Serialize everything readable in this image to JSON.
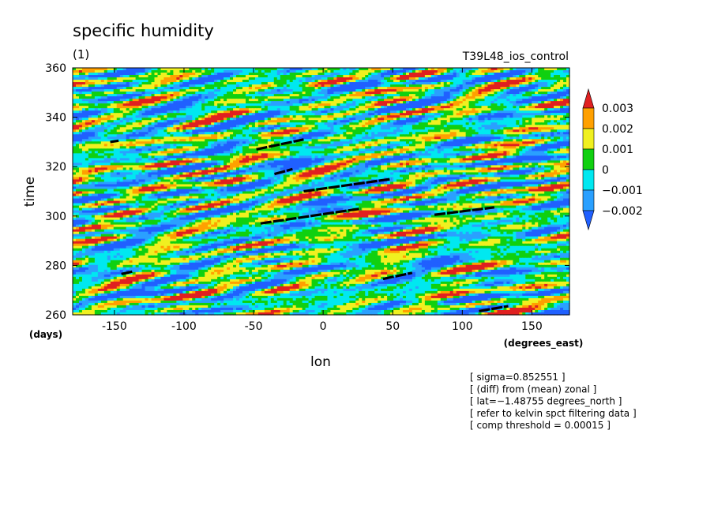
{
  "chart_data": {
    "type": "heatmap",
    "title": "specific humidity",
    "subtitle": "(1)",
    "run_label": "T39L48_ios_control",
    "xlabel": "lon",
    "ylabel": "time",
    "x_unit": "(degrees_east)",
    "y_unit": "(days)",
    "xlim": [
      -180,
      177
    ],
    "ylim": [
      260,
      360
    ],
    "x_ticks": [
      "-150",
      "-100",
      "-50",
      "0",
      "50",
      "100",
      "150"
    ],
    "x_tick_values": [
      -150,
      -100,
      -50,
      0,
      50,
      100,
      150
    ],
    "y_ticks": [
      "260",
      "280",
      "300",
      "320",
      "340",
      "360"
    ],
    "y_tick_values": [
      260,
      280,
      300,
      320,
      340,
      360
    ],
    "colorbar": {
      "labels": [
        "0.003",
        "0.002",
        "0.001",
        "0",
        "−0.001",
        "−0.002"
      ],
      "levels": [
        -0.002,
        -0.001,
        0,
        0.001,
        0.002,
        0.003
      ],
      "colors": [
        "#2060ff",
        "#2aa0ff",
        "#00e8f0",
        "#10d010",
        "#f0f020",
        "#ffa000",
        "#e02020"
      ],
      "extend": "both"
    },
    "kelvin_tracks": [
      {
        "lon": [
          -153,
          -147
        ],
        "time": [
          330,
          330.5
        ]
      },
      {
        "lon": [
          -48,
          -14
        ],
        "time": [
          327,
          331
        ]
      },
      {
        "lon": [
          -35,
          -22
        ],
        "time": [
          317,
          319
        ]
      },
      {
        "lon": [
          -14,
          49
        ],
        "time": [
          310,
          315
        ]
      },
      {
        "lon": [
          -45,
          27
        ],
        "time": [
          297,
          303
        ]
      },
      {
        "lon": [
          80,
          123
        ],
        "time": [
          300.5,
          303.5
        ]
      },
      {
        "lon": [
          -145,
          -137
        ],
        "time": [
          276.5,
          277.5
        ]
      },
      {
        "lon": [
          43,
          64
        ],
        "time": [
          274.5,
          277
        ]
      },
      {
        "lon": [
          112,
          133
        ],
        "time": [
          261.5,
          263.5
        ]
      }
    ],
    "annotations": [
      "[ sigma=0.852551 ]",
      "[ (diff) from (mean) zonal ]",
      "[ lat=−1.48755 degrees_north ]",
      "[ refer to kelvin spct filtering data ]",
      "[ comp threshold = 0.00015 ]"
    ]
  }
}
